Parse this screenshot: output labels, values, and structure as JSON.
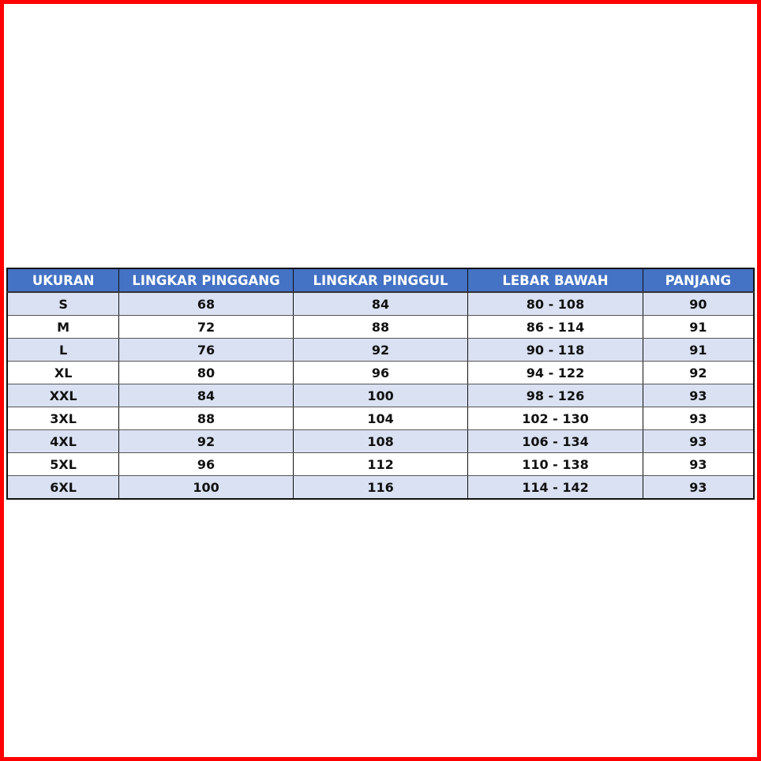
{
  "colors": {
    "header_bg": "#4472c4",
    "alt_row_bg": "#d9e1f2",
    "frame": "#ff0000"
  },
  "table": {
    "headers": [
      "UKURAN",
      "LINGKAR PINGGANG",
      "LINGKAR PINGGUL",
      "LEBAR BAWAH",
      "PANJANG"
    ],
    "rows": [
      [
        "S",
        "68",
        "84",
        "80 - 108",
        "90"
      ],
      [
        "M",
        "72",
        "88",
        "86 - 114",
        "91"
      ],
      [
        "L",
        "76",
        "92",
        "90 - 118",
        "91"
      ],
      [
        "XL",
        "80",
        "96",
        "94 - 122",
        "92"
      ],
      [
        "XXL",
        "84",
        "100",
        "98 - 126",
        "93"
      ],
      [
        "3XL",
        "88",
        "104",
        "102 - 130",
        "93"
      ],
      [
        "4XL",
        "92",
        "108",
        "106 - 134",
        "93"
      ],
      [
        "5XL",
        "96",
        "112",
        "110 - 138",
        "93"
      ],
      [
        "6XL",
        "100",
        "116",
        "114 - 142",
        "93"
      ]
    ]
  }
}
